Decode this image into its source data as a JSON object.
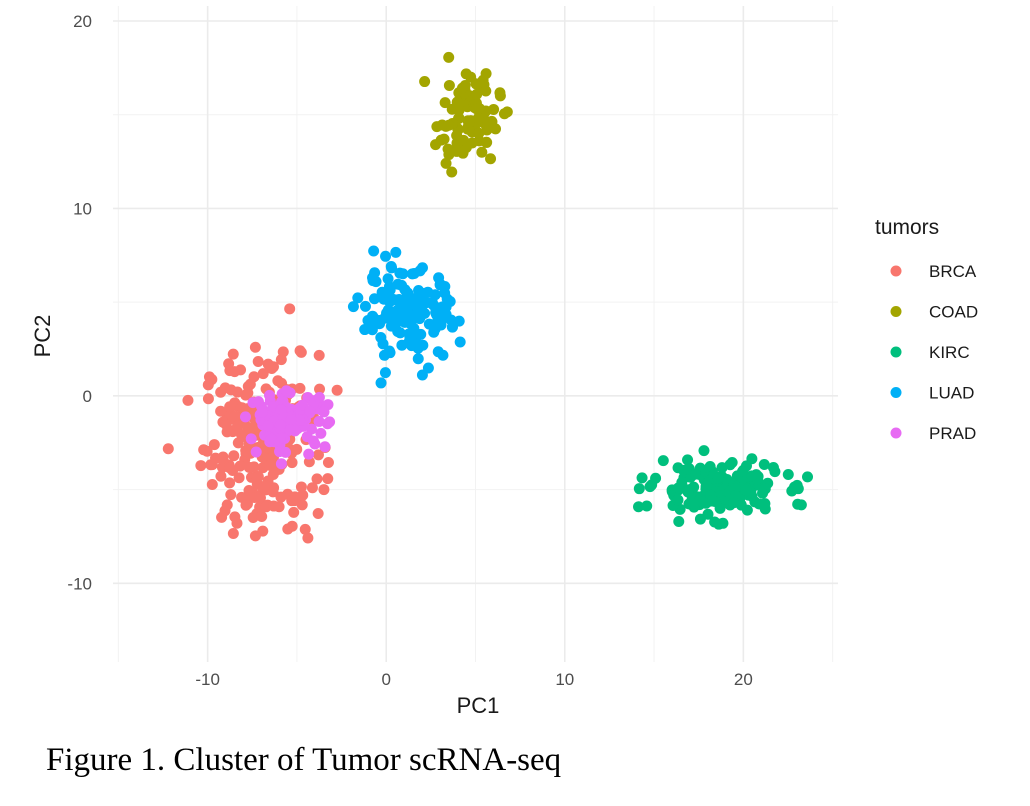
{
  "caption": "Figure 1. Cluster of Tumor scRNA-seq",
  "chart_data": {
    "type": "scatter",
    "xlabel": "PC1",
    "ylabel": "PC2",
    "xlim": [
      -15.3,
      25.3
    ],
    "ylim": [
      -14.2,
      20.8
    ],
    "xticks": [
      -10,
      0,
      10,
      20
    ],
    "xtick_labels": [
      "-10",
      "0",
      "10",
      "20"
    ],
    "yticks": [
      -10,
      0,
      10,
      20
    ],
    "ytick_labels": [
      "-10",
      "0",
      "10",
      "20"
    ],
    "grid": true,
    "legend": {
      "title": "tumors",
      "placement": "right"
    },
    "series": [
      {
        "name": "BRCA",
        "color": "#F8766D",
        "center": [
          -7.0,
          -2.5
        ],
        "spread": [
          3.2,
          4.8
        ],
        "count": 240
      },
      {
        "name": "COAD",
        "color": "#A3A500",
        "center": [
          4.6,
          14.8
        ],
        "spread": [
          1.8,
          2.4
        ],
        "count": 90
      },
      {
        "name": "KIRC",
        "color": "#00BF7D",
        "center": [
          18.5,
          -5.0
        ],
        "spread": [
          3.5,
          1.4
        ],
        "count": 190
      },
      {
        "name": "LUAD",
        "color": "#00B0F6",
        "center": [
          1.3,
          4.3
        ],
        "spread": [
          2.7,
          2.4
        ],
        "count": 150
      },
      {
        "name": "PRAD",
        "color": "#E76BF3",
        "center": [
          -5.5,
          -1.3
        ],
        "spread": [
          2.2,
          1.4
        ],
        "count": 110
      }
    ]
  }
}
